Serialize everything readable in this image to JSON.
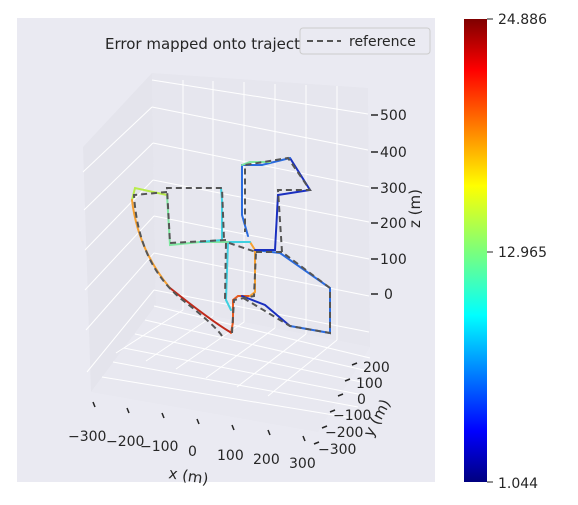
{
  "chart_data": {
    "type": "line",
    "projection": "3d",
    "title": "Error mapped onto trajectory",
    "xlabel": "x (m)",
    "ylabel": "y (m)",
    "zlabel": "z (m)",
    "x_ticks": [
      "−300",
      "−200",
      "−100",
      "0",
      "100",
      "200",
      "300"
    ],
    "y_ticks": [
      "200",
      "100",
      "0",
      "−100",
      "−200",
      "−300"
    ],
    "z_ticks": [
      "500",
      "400",
      "300",
      "200",
      "100",
      "0"
    ],
    "legend": {
      "entries": [
        "reference"
      ],
      "position": "top-right"
    },
    "colorbar": {
      "colormap": "jet",
      "min": 1.044,
      "max": 24.886,
      "tick_labels": [
        "24.886",
        "12.965",
        "1.044"
      ]
    },
    "series": [
      {
        "name": "reference",
        "style": "dashed",
        "color": "#555555"
      }
    ],
    "trajectory_error_colors": [
      "#1a2fbf",
      "#2a6bdf",
      "#3fd0e0",
      "#7fe6a0",
      "#b8ec4a",
      "#f6a030",
      "#e85a20",
      "#c0291a"
    ]
  }
}
